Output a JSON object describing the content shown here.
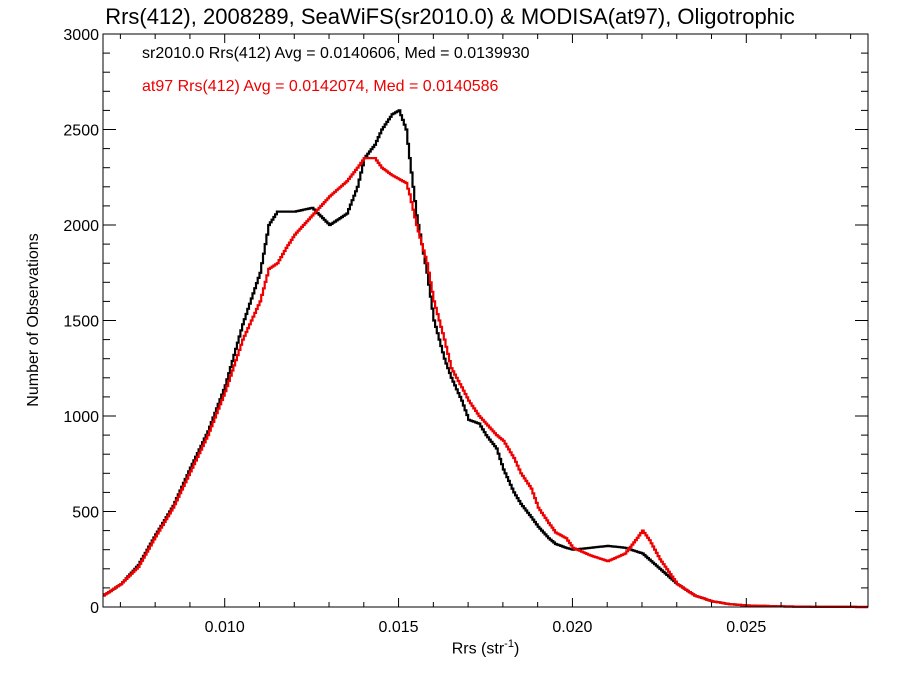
{
  "chart_data": {
    "type": "line",
    "title": "Rrs(412), 2008289, SeaWiFS(sr2010.0) & MODISA(at97), Oligotrophic",
    "xlabel": "Rrs (str",
    "xlabel_sup": "-1",
    "xlabel_end": ")",
    "ylabel": "Number of Observations",
    "xlim": [
      0.0065,
      0.0285
    ],
    "ylim": [
      0,
      3000
    ],
    "xticks": [
      0.01,
      0.015,
      0.02,
      0.025
    ],
    "xtick_labels": [
      "0.010",
      "0.015",
      "0.020",
      "0.025"
    ],
    "yticks": [
      0,
      500,
      1000,
      1500,
      2000,
      2500,
      3000
    ],
    "ytick_labels": [
      "0",
      "500",
      "1000",
      "1500",
      "2000",
      "2500",
      "3000"
    ],
    "legend": [
      {
        "text": "sr2010.0 Rrs(412) Avg = 0.0140606, Med = 0.0139930",
        "color": "#000000"
      },
      {
        "text": "at97 Rrs(412) Avg = 0.0142074, Med = 0.0140586",
        "color": "#ee0000"
      }
    ],
    "series": [
      {
        "name": "sr2010.0",
        "color": "#000000",
        "x": [
          0.0065,
          0.007,
          0.0075,
          0.008,
          0.0085,
          0.009,
          0.0095,
          0.01,
          0.0105,
          0.011,
          0.01125,
          0.0115,
          0.01175,
          0.012,
          0.0125,
          0.013,
          0.0135,
          0.0138,
          0.014,
          0.0143,
          0.0145,
          0.0148,
          0.015,
          0.0152,
          0.0153,
          0.0155,
          0.0158,
          0.016,
          0.0163,
          0.0165,
          0.0168,
          0.017,
          0.0173,
          0.0175,
          0.0178,
          0.018,
          0.0183,
          0.0185,
          0.0188,
          0.019,
          0.0193,
          0.0195,
          0.0198,
          0.02,
          0.0205,
          0.021,
          0.0215,
          0.022,
          0.0225,
          0.023,
          0.0235,
          0.024,
          0.0245,
          0.025,
          0.026,
          0.027,
          0.0285
        ],
        "y": [
          60,
          120,
          220,
          380,
          530,
          730,
          920,
          1160,
          1480,
          1750,
          2000,
          2070,
          2070,
          2070,
          2090,
          2000,
          2060,
          2200,
          2350,
          2420,
          2500,
          2580,
          2600,
          2500,
          2350,
          2050,
          1750,
          1500,
          1300,
          1200,
          1080,
          980,
          960,
          900,
          830,
          720,
          600,
          540,
          470,
          420,
          360,
          330,
          310,
          300,
          310,
          320,
          310,
          280,
          200,
          120,
          60,
          30,
          15,
          8,
          3,
          1,
          0
        ]
      },
      {
        "name": "at97",
        "color": "#ee0000",
        "x": [
          0.0065,
          0.007,
          0.0075,
          0.008,
          0.0085,
          0.009,
          0.0095,
          0.01,
          0.0105,
          0.011,
          0.01125,
          0.0115,
          0.01175,
          0.012,
          0.0125,
          0.013,
          0.0135,
          0.0138,
          0.014,
          0.0143,
          0.0145,
          0.0148,
          0.015,
          0.0152,
          0.0153,
          0.0155,
          0.0158,
          0.016,
          0.0163,
          0.0165,
          0.0168,
          0.017,
          0.0173,
          0.0175,
          0.0178,
          0.018,
          0.0183,
          0.0185,
          0.0188,
          0.019,
          0.0193,
          0.0195,
          0.0198,
          0.02,
          0.0205,
          0.021,
          0.0215,
          0.0218,
          0.022,
          0.0222,
          0.0225,
          0.023,
          0.0235,
          0.024,
          0.0245,
          0.025,
          0.026,
          0.027,
          0.0285
        ],
        "y": [
          60,
          120,
          210,
          370,
          520,
          710,
          900,
          1130,
          1400,
          1600,
          1770,
          1800,
          1880,
          1950,
          2050,
          2150,
          2230,
          2300,
          2350,
          2350,
          2300,
          2260,
          2240,
          2220,
          2160,
          2000,
          1800,
          1600,
          1400,
          1250,
          1150,
          1080,
          1000,
          960,
          900,
          870,
          780,
          700,
          620,
          520,
          440,
          390,
          360,
          310,
          270,
          240,
          280,
          350,
          400,
          350,
          250,
          120,
          60,
          30,
          15,
          8,
          3,
          1,
          0
        ]
      }
    ]
  }
}
